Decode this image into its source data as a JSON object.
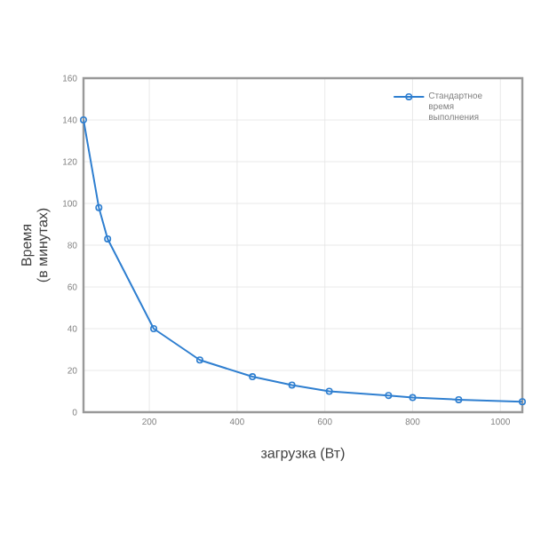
{
  "chart_data": {
    "type": "line",
    "xlabel": "загрузка (Вт)",
    "ylabel": "Время\n(в минутах)",
    "x": [
      50,
      85,
      105,
      210,
      315,
      435,
      525,
      610,
      745,
      800,
      905,
      1050
    ],
    "series": [
      {
        "name": "Стандартное время выполнения",
        "color": "#2f7fd0",
        "values": [
          140,
          98,
          83,
          40,
          25,
          17,
          13,
          10,
          8,
          7,
          6,
          5
        ]
      }
    ],
    "xlim": [
      50,
      1050
    ],
    "ylim": [
      0,
      160
    ],
    "xticks": [
      200,
      400,
      600,
      800,
      1000
    ],
    "yticks": [
      0,
      20,
      40,
      60,
      80,
      100,
      120,
      140,
      160
    ],
    "grid": true,
    "legend": "top right",
    "marker": "circle",
    "line_style": "solid"
  }
}
